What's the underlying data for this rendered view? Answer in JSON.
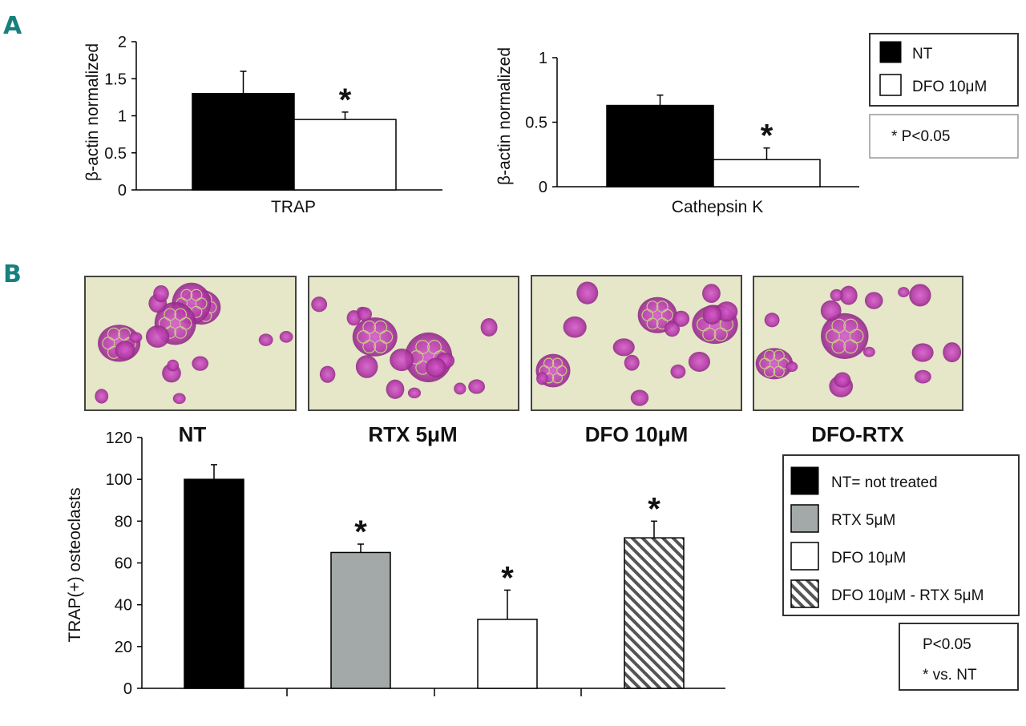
{
  "panels": {
    "a": "A",
    "b": "B"
  },
  "significance_marker": "*",
  "legend_a": {
    "items": [
      {
        "label": "NT",
        "color": "#000000",
        "pattern": "solid"
      },
      {
        "label": "DFO 10μM",
        "color": "#ffffff",
        "pattern": "solid"
      }
    ],
    "note": "* P<0.05"
  },
  "micrographs": {
    "labels": [
      "NT",
      "RTX 5μM",
      "DFO 10μM",
      "DFO-RTX"
    ]
  },
  "legend_b": {
    "items": [
      {
        "label": "NT= not treated",
        "color": "#000000",
        "pattern": "solid"
      },
      {
        "label": "RTX 5μM",
        "color": "#a3a8a8",
        "pattern": "solid"
      },
      {
        "label": "DFO 10μM",
        "color": "#ffffff",
        "pattern": "solid"
      },
      {
        "label": "DFO 10μM - RTX 5μM",
        "color": "#ffffff",
        "pattern": "hatch"
      }
    ],
    "note_line1": "P<0.05",
    "note_line2": "* vs. NT"
  },
  "chart_data": [
    {
      "type": "bar",
      "categories": [
        "TRAP"
      ],
      "series": [
        {
          "name": "NT",
          "values": [
            1.3
          ],
          "errors": [
            0.3
          ]
        },
        {
          "name": "DFO 10μM",
          "values": [
            0.95
          ],
          "errors": [
            0.1
          ]
        }
      ],
      "xlabel": "TRAP",
      "ylabel": "β-actin normalized",
      "ylim": [
        0,
        2
      ],
      "yticks": [
        "0",
        "0.5",
        "1",
        "1.5",
        "2"
      ],
      "significant": [
        false,
        true
      ]
    },
    {
      "type": "bar",
      "categories": [
        "Cathepsin K"
      ],
      "series": [
        {
          "name": "NT",
          "values": [
            0.63
          ],
          "errors": [
            0.08
          ]
        },
        {
          "name": "DFO 10μM",
          "values": [
            0.21
          ],
          "errors": [
            0.09
          ]
        }
      ],
      "xlabel": "Cathepsin K",
      "ylabel": "β-actin normalized",
      "ylim": [
        0,
        1
      ],
      "yticks": [
        "0",
        "0.5",
        "1"
      ],
      "significant": [
        false,
        true
      ]
    },
    {
      "type": "bar",
      "categories": [
        "NT= not treated",
        "RTX 5μM",
        "DFO 10μM",
        "DFO 10μM - RTX 5μM"
      ],
      "values": [
        100,
        65,
        33,
        72
      ],
      "errors": [
        7,
        4,
        14,
        8
      ],
      "ylabel": "TRAP(+) osteoclasts",
      "ylim": [
        0,
        120
      ],
      "yticks": [
        "0",
        "20",
        "40",
        "60",
        "80",
        "100",
        "120"
      ],
      "significant": [
        false,
        true,
        true,
        true
      ]
    }
  ]
}
